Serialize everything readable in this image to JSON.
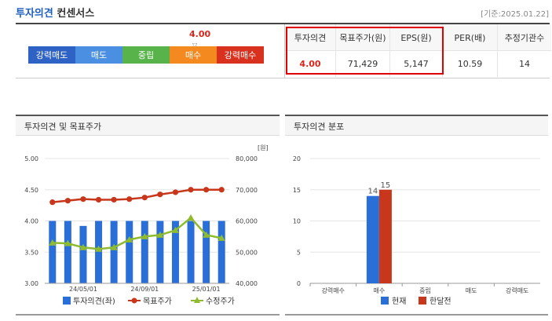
{
  "header": {
    "title_blue": "투자의견",
    "title_dark": "컨센서스",
    "date": "[기준:2025.01.22]"
  },
  "opinion_scale": {
    "current_value": "4.00",
    "current_index": 3,
    "segments": [
      {
        "label": "강력매도",
        "color": "#2e62c4"
      },
      {
        "label": "매도",
        "color": "#4b8fe3"
      },
      {
        "label": "중립",
        "color": "#58b44a"
      },
      {
        "label": "매수",
        "color": "#f4891f"
      },
      {
        "label": "강력매수",
        "color": "#d8321f"
      }
    ]
  },
  "summary": {
    "headers": [
      "투자의견",
      "목표주가(원)",
      "EPS(원)",
      "PER(배)",
      "추정기관수"
    ],
    "values": [
      "4.00",
      "71,429",
      "5,147",
      "10.59",
      "14"
    ]
  },
  "chart_data": [
    {
      "type": "bar",
      "title": "투자의견 및 목표주가",
      "left_axis": {
        "ticks": [
          "5.00",
          "4.50",
          "4.00",
          "3.50",
          "3.00"
        ],
        "ylim": [
          3.0,
          5.0
        ]
      },
      "right_axis": {
        "unit": "[원]",
        "ticks": [
          "80,000",
          "70,000",
          "60,000",
          "50,000",
          "40,000"
        ],
        "ylim": [
          40000,
          80000
        ]
      },
      "x_tick_labels": [
        "24/05/01",
        "24/09/01",
        "25/01/01"
      ],
      "x_tick_positions": [
        2,
        6,
        10
      ],
      "legend_position": "bottom",
      "series": [
        {
          "name": "투자의견(좌)",
          "type": "bar",
          "color": "#2a6fd8",
          "values": [
            4.0,
            4.0,
            3.92,
            4.0,
            4.0,
            4.0,
            4.0,
            4.0,
            4.0,
            4.0,
            4.0,
            4.0
          ]
        },
        {
          "name": "목표주가",
          "type": "line",
          "color": "#c8361b",
          "values": [
            66000,
            66500,
            67000,
            66800,
            66800,
            67000,
            67500,
            68500,
            69200,
            70000,
            70000,
            70000
          ]
        },
        {
          "name": "수정주가",
          "type": "line",
          "color": "#8fbc2e",
          "values": [
            53000,
            52800,
            51500,
            51000,
            51500,
            54000,
            55000,
            55500,
            57000,
            61000,
            55500,
            54500
          ]
        }
      ]
    },
    {
      "type": "bar",
      "title": "투자의견 분포",
      "categories": [
        "강력매수",
        "매수",
        "중립",
        "매도",
        "강력매도"
      ],
      "ylim": [
        0,
        20
      ],
      "y_ticks": [
        "20",
        "15",
        "10",
        "5",
        "0"
      ],
      "legend_position": "bottom",
      "series": [
        {
          "name": "현재",
          "color": "#2a6fd8",
          "values": [
            0,
            14,
            0,
            0,
            0
          ],
          "labels": [
            "",
            "14",
            "",
            "",
            ""
          ]
        },
        {
          "name": "한달전",
          "color": "#c8361b",
          "values": [
            0,
            15,
            0,
            0,
            0
          ],
          "labels": [
            "",
            "15",
            "",
            "",
            ""
          ]
        }
      ]
    }
  ]
}
